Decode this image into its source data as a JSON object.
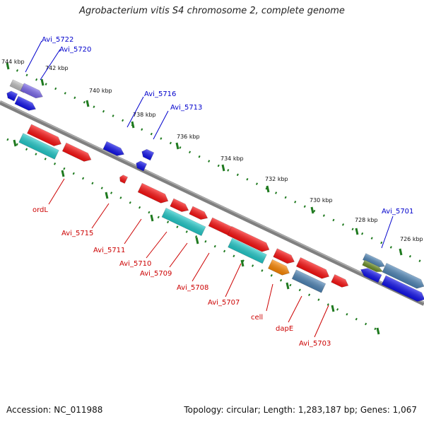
{
  "title": "Agrobacterium vitis S4 chromosome 2, complete genome",
  "footer": {
    "accession": "Accession: NC_011988",
    "summary": "Topology: circular; Length: 1,283,187 bp; Genes: 1,067"
  },
  "ticks": [
    "744 kbp",
    "742 kbp",
    "740 kbp",
    "738 kbp",
    "736 kbp",
    "734 kbp",
    "732 kbp",
    "730 kbp",
    "728 kbp",
    "726 kbp"
  ],
  "top_gene_labels": [
    "Avi_5722",
    "Avi_5720",
    "Avi_5716",
    "Avi_5713",
    "Avi_5701"
  ],
  "bottom_gene_labels": [
    "ordL",
    "Avi_5715",
    "Avi_5711",
    "Avi_5710",
    "Avi_5709",
    "Avi_5708",
    "Avi_5707",
    "cell",
    "dapE",
    "Avi_5703"
  ],
  "colors": {
    "backbone": "#808080",
    "tick": "#1f7a1f",
    "red_feature": "#ff1111",
    "blue_feature": "#1111ee",
    "cyan_feature": "#22cccc",
    "steel_feature": "#4f86b8",
    "orange_feature": "#ff8800",
    "olive_feature": "#6b8e23",
    "purple_feature": "#7b68ee",
    "grey_feature": "#c0c0c0",
    "top_label": "#0000cc",
    "bottom_label": "#cc0000"
  }
}
